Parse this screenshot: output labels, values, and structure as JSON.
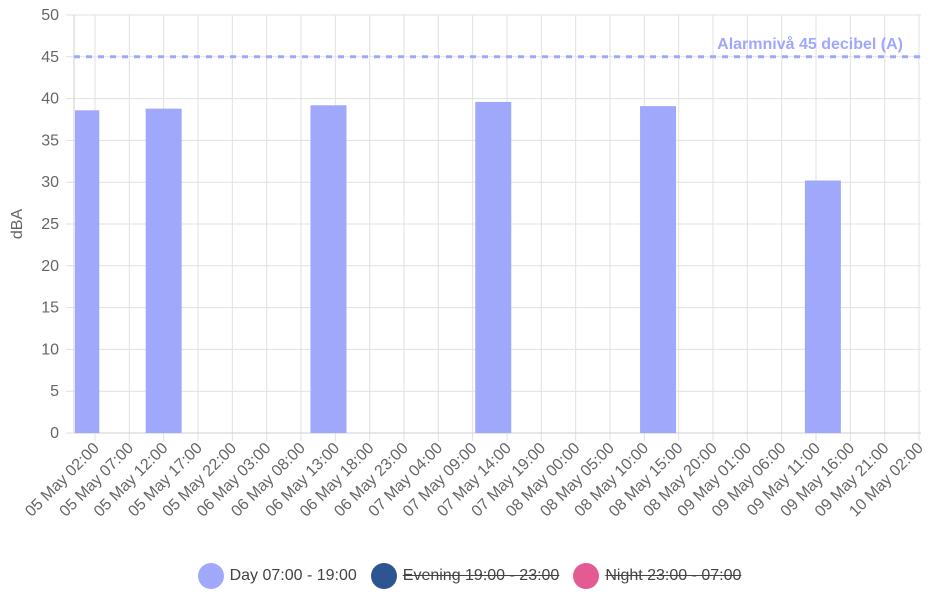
{
  "chart_data": {
    "type": "bar",
    "ylabel": "dBA",
    "xlabel": "",
    "ylim": [
      0,
      50
    ],
    "yticks": [
      0,
      5,
      10,
      15,
      20,
      25,
      30,
      35,
      40,
      45,
      50
    ],
    "grid": true,
    "categories": [
      "05 May 02:00",
      "05 May 07:00",
      "05 May 12:00",
      "05 May 17:00",
      "05 May 22:00",
      "06 May 03:00",
      "06 May 08:00",
      "06 May 13:00",
      "06 May 18:00",
      "06 May 23:00",
      "07 May 04:00",
      "07 May 09:00",
      "07 May 14:00",
      "07 May 19:00",
      "08 May 00:00",
      "08 May 05:00",
      "08 May 10:00",
      "08 May 15:00",
      "08 May 20:00",
      "09 May 01:00",
      "09 May 06:00",
      "09 May 11:00",
      "09 May 16:00",
      "09 May 21:00",
      "10 May 02:00"
    ],
    "series": [
      {
        "name": "Day 07:00 - 19:00",
        "color": "#a0a8fb",
        "visible": true,
        "bars": [
          {
            "start": "05 May 00:00",
            "end": "05 May 00:00",
            "value": 38.6
          },
          {
            "start": "05 May 00:00",
            "end": "06 May 00:00",
            "value": 38.8
          },
          {
            "start": "06 May 00:00",
            "end": "07 May 00:00",
            "value": 39.2
          },
          {
            "start": "07 May 00:00",
            "end": "08 May 00:00",
            "value": 39.6
          },
          {
            "start": "08 May 00:00",
            "end": "09 May 00:00",
            "value": 39.1
          },
          {
            "start": "09 May 00:00",
            "end": "10 May 00:00",
            "value": 30.2
          }
        ]
      },
      {
        "name": "Evening 19:00 - 23:00",
        "color": "#2c5690",
        "visible": false
      },
      {
        "name": "Night 23:00 - 07:00",
        "color": "#e45a93",
        "visible": false
      }
    ],
    "annotations": [
      {
        "type": "hline",
        "value": 45,
        "label": "Alarmnivå 45 decibel (A)",
        "color": "#a0a8fb",
        "style": "dashed"
      }
    ],
    "legend": "bottom"
  }
}
